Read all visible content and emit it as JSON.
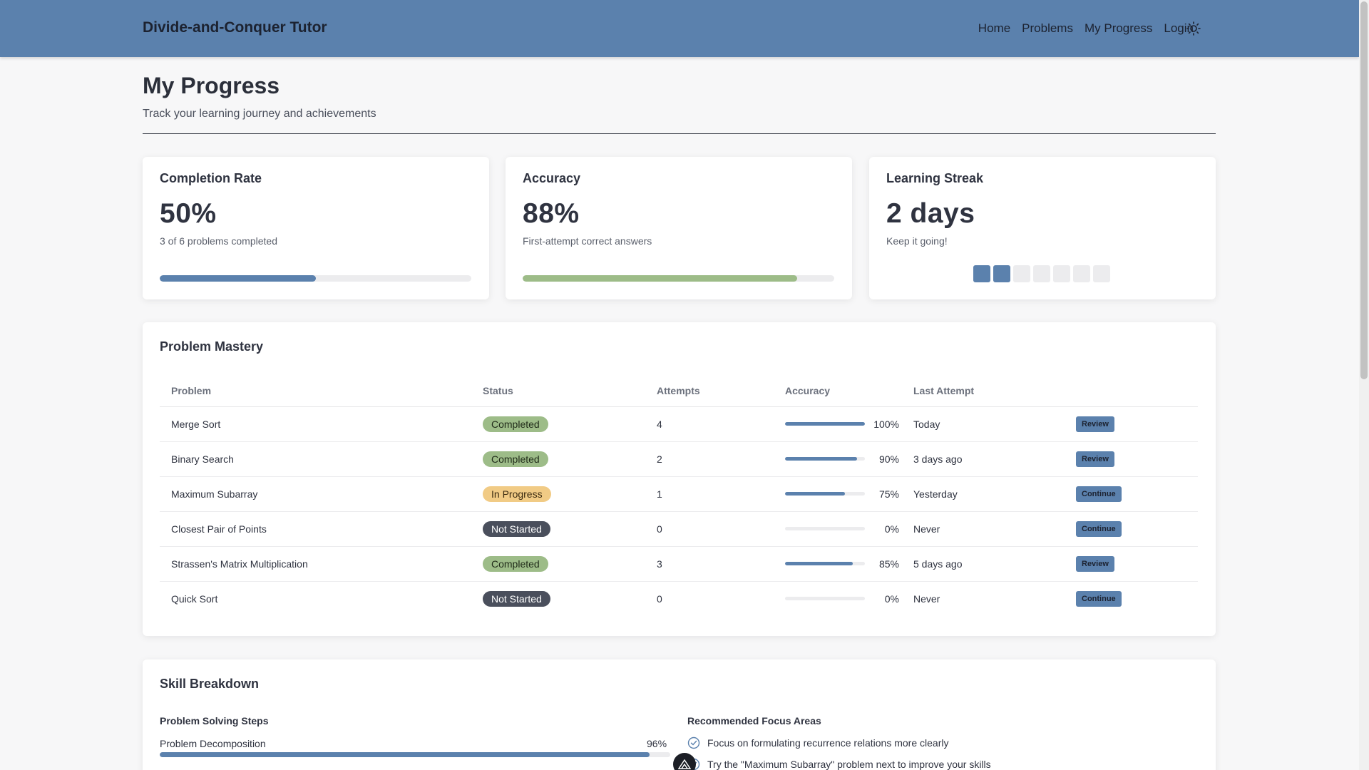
{
  "header": {
    "brand": "Divide-and-Conquer Tutor",
    "nav": [
      "Home",
      "Problems",
      "My Progress",
      "Login"
    ],
    "theme_icon": "sun-icon"
  },
  "page": {
    "title": "My Progress",
    "subtitle": "Track your learning journey and achievements"
  },
  "stats": {
    "completion": {
      "title": "Completion Rate",
      "value": "50%",
      "note": "3 of 6 problems completed",
      "progress": 0.5,
      "color": "#5b81ad"
    },
    "accuracy": {
      "title": "Accuracy",
      "value": "88%",
      "note": "First-attempt correct answers",
      "progress": 0.88,
      "color": "#9dbc88"
    },
    "streak": {
      "title": "Learning Streak",
      "value": "2 days",
      "note": "Keep it going!",
      "days_active": 2,
      "days_total": 7
    }
  },
  "mastery": {
    "title": "Problem Mastery",
    "columns": [
      "Problem",
      "Status",
      "Attempts",
      "Accuracy",
      "Last Attempt",
      ""
    ],
    "rows": [
      {
        "problem": "Merge Sort",
        "status": "Completed",
        "status_kind": "completed",
        "attempts": "4",
        "accuracy": 100,
        "accuracy_label": "100%",
        "last": "Today",
        "action": "Review"
      },
      {
        "problem": "Binary Search",
        "status": "Completed",
        "status_kind": "completed",
        "attempts": "2",
        "accuracy": 90,
        "accuracy_label": "90%",
        "last": "3 days ago",
        "action": "Review"
      },
      {
        "problem": "Maximum Subarray",
        "status": "In Progress",
        "status_kind": "progress",
        "attempts": "1",
        "accuracy": 75,
        "accuracy_label": "75%",
        "last": "Yesterday",
        "action": "Continue"
      },
      {
        "problem": "Closest Pair of Points",
        "status": "Not Started",
        "status_kind": "notstarted",
        "attempts": "0",
        "accuracy": 0,
        "accuracy_label": "0%",
        "last": "Never",
        "action": "Continue"
      },
      {
        "problem": "Strassen's Matrix Multiplication",
        "status": "Completed",
        "status_kind": "completed",
        "attempts": "3",
        "accuracy": 85,
        "accuracy_label": "85%",
        "last": "5 days ago",
        "action": "Review"
      },
      {
        "problem": "Quick Sort",
        "status": "Not Started",
        "status_kind": "notstarted",
        "attempts": "0",
        "accuracy": 0,
        "accuracy_label": "0%",
        "last": "Never",
        "action": "Continue"
      }
    ]
  },
  "skills": {
    "title": "Skill Breakdown",
    "steps_title": "Problem Solving Steps",
    "steps": [
      {
        "label": "Problem Decomposition",
        "value": 96,
        "value_label": "96%"
      }
    ],
    "focus_title": "Recommended Focus Areas",
    "focus": [
      "Focus on formulating recurrence relations more clearly",
      "Try the \"Maximum Subarray\" problem next to improve your skills"
    ]
  }
}
